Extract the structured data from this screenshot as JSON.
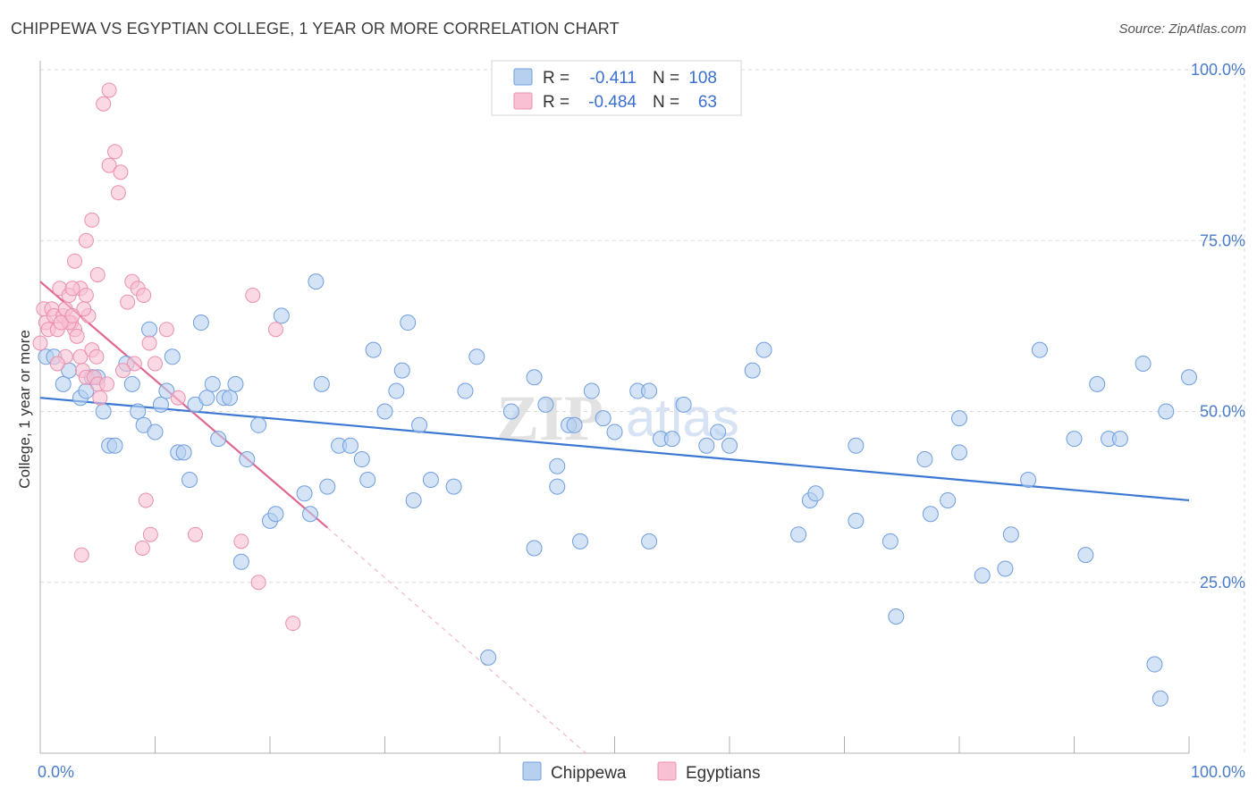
{
  "header": {
    "title": "CHIPPEWA VS EGYPTIAN COLLEGE, 1 YEAR OR MORE CORRELATION CHART",
    "source": "Source: ZipAtlas.com"
  },
  "watermark": "ZIPatlas",
  "chart_data": {
    "type": "scatter",
    "ylabel": "College, 1 year or more",
    "xlim": [
      0,
      100
    ],
    "ylim": [
      0,
      100
    ],
    "x_tick_labels": [
      "0.0%",
      "100.0%"
    ],
    "y_tick_labels": [
      "100.0%",
      "75.0%",
      "50.0%",
      "25.0%"
    ],
    "y_ticks": [
      100,
      75,
      50,
      25
    ],
    "grid": "horizontal dashed",
    "legend_position": "top-center",
    "legend": {
      "rows": [
        {
          "series": "Chippewa",
          "r_label": "R =",
          "r_value": "-0.411",
          "n_label": "N =",
          "n_value": "108"
        },
        {
          "series": "Egyptians",
          "r_label": "R =",
          "r_value": "-0.484",
          "n_label": "N =",
          "n_value": "63"
        }
      ]
    },
    "colors": {
      "Chippewa": {
        "fill": "#b8d0f0",
        "stroke": "#6f9ee0",
        "line": "#3a78d4"
      },
      "Egyptians": {
        "fill": "#f8c0d2",
        "stroke": "#ea8fad",
        "line": "#e0668f"
      }
    },
    "series": [
      {
        "name": "Chippewa",
        "trend": {
          "x0": 0,
          "y0": 52,
          "x1": 100,
          "y1": 37
        },
        "points": [
          [
            0.5,
            58
          ],
          [
            1.2,
            58
          ],
          [
            2,
            54
          ],
          [
            2.5,
            56
          ],
          [
            3.5,
            52
          ],
          [
            4,
            53
          ],
          [
            4.5,
            55
          ],
          [
            5,
            55
          ],
          [
            5.5,
            50
          ],
          [
            6,
            45
          ],
          [
            6.5,
            45
          ],
          [
            7.5,
            57
          ],
          [
            8,
            54
          ],
          [
            8.5,
            50
          ],
          [
            9,
            48
          ],
          [
            9.5,
            62
          ],
          [
            10,
            47
          ],
          [
            10.5,
            51
          ],
          [
            11,
            53
          ],
          [
            11.5,
            58
          ],
          [
            12,
            44
          ],
          [
            12.5,
            44
          ],
          [
            13,
            40
          ],
          [
            13.5,
            51
          ],
          [
            14,
            63
          ],
          [
            14.5,
            52
          ],
          [
            15,
            54
          ],
          [
            15.5,
            46
          ],
          [
            16,
            52
          ],
          [
            16.5,
            52
          ],
          [
            17,
            54
          ],
          [
            17.5,
            28
          ],
          [
            18,
            43
          ],
          [
            19,
            48
          ],
          [
            20,
            34
          ],
          [
            20.5,
            35
          ],
          [
            21,
            64
          ],
          [
            23,
            38
          ],
          [
            23.5,
            35
          ],
          [
            24,
            69
          ],
          [
            24.5,
            54
          ],
          [
            25,
            39
          ],
          [
            26,
            45
          ],
          [
            27,
            45
          ],
          [
            28,
            43
          ],
          [
            28.5,
            40
          ],
          [
            29,
            59
          ],
          [
            30,
            50
          ],
          [
            31,
            53
          ],
          [
            31.5,
            56
          ],
          [
            32,
            63
          ],
          [
            32.5,
            37
          ],
          [
            33,
            48
          ],
          [
            34,
            40
          ],
          [
            36,
            39
          ],
          [
            38,
            58
          ],
          [
            39,
            14
          ],
          [
            41,
            50
          ],
          [
            43,
            55
          ],
          [
            43,
            30
          ],
          [
            45,
            42
          ],
          [
            45,
            39
          ],
          [
            46,
            48
          ],
          [
            46.5,
            48
          ],
          [
            47,
            31
          ],
          [
            48,
            53
          ],
          [
            49,
            49
          ],
          [
            50,
            47
          ],
          [
            52,
            53
          ],
          [
            53,
            31
          ],
          [
            53,
            53
          ],
          [
            54,
            46
          ],
          [
            56,
            51
          ],
          [
            58,
            45
          ],
          [
            59,
            47
          ],
          [
            62,
            56
          ],
          [
            63,
            59
          ],
          [
            66,
            32
          ],
          [
            67,
            37
          ],
          [
            67.5,
            38
          ],
          [
            71,
            45
          ],
          [
            71,
            34
          ],
          [
            74,
            31
          ],
          [
            74.5,
            20
          ],
          [
            77,
            43
          ],
          [
            77.5,
            35
          ],
          [
            79,
            37
          ],
          [
            80,
            44
          ],
          [
            80,
            49
          ],
          [
            82,
            26
          ],
          [
            84,
            27
          ],
          [
            84.5,
            32
          ],
          [
            86,
            40
          ],
          [
            87,
            59
          ],
          [
            90,
            46
          ],
          [
            91,
            29
          ],
          [
            92,
            54
          ],
          [
            93,
            46
          ],
          [
            94,
            46
          ],
          [
            96,
            57
          ],
          [
            97,
            13
          ],
          [
            97.5,
            8
          ],
          [
            98,
            50
          ],
          [
            100,
            55
          ],
          [
            55,
            46
          ],
          [
            60,
            45
          ],
          [
            44,
            51
          ],
          [
            37,
            53
          ]
        ]
      },
      {
        "name": "Egyptians",
        "trend": {
          "x0": 0,
          "y0": 69,
          "x1": 25,
          "y1": 33
        },
        "trend_ext": {
          "x0": 25,
          "y0": 33,
          "x1": 47.5,
          "y1": 0
        },
        "points": [
          [
            0,
            60
          ],
          [
            0.3,
            65
          ],
          [
            0.5,
            63
          ],
          [
            0.7,
            62
          ],
          [
            1,
            65
          ],
          [
            1.2,
            64
          ],
          [
            1.5,
            62
          ],
          [
            1.7,
            68
          ],
          [
            2,
            64
          ],
          [
            2.2,
            65
          ],
          [
            2.5,
            67
          ],
          [
            2.7,
            63
          ],
          [
            3,
            62
          ],
          [
            3.2,
            61
          ],
          [
            3.5,
            58
          ],
          [
            3.7,
            56
          ],
          [
            4,
            55
          ],
          [
            4.2,
            64
          ],
          [
            4.5,
            59
          ],
          [
            4.7,
            55
          ],
          [
            5,
            54
          ],
          [
            5.2,
            52
          ],
          [
            3,
            72
          ],
          [
            4,
            75
          ],
          [
            5,
            70
          ],
          [
            6,
            86
          ],
          [
            6.5,
            88
          ],
          [
            7,
            85
          ],
          [
            4.5,
            78
          ],
          [
            5.5,
            95
          ],
          [
            6,
            97
          ],
          [
            6.8,
            82
          ],
          [
            8,
            69
          ],
          [
            8.5,
            68
          ],
          [
            9,
            67
          ],
          [
            9.5,
            60
          ],
          [
            10,
            57
          ],
          [
            11,
            62
          ],
          [
            12,
            52
          ],
          [
            3.5,
            68
          ],
          [
            4,
            67
          ],
          [
            2.5,
            63
          ],
          [
            3.8,
            65
          ],
          [
            1.8,
            63
          ],
          [
            2.8,
            64
          ],
          [
            8.2,
            57
          ],
          [
            8.9,
            30
          ],
          [
            9.2,
            37
          ],
          [
            9.6,
            32
          ],
          [
            13.5,
            32
          ],
          [
            17.5,
            31
          ],
          [
            18.5,
            67
          ],
          [
            19,
            25
          ],
          [
            20.5,
            62
          ],
          [
            22,
            19
          ],
          [
            7.6,
            66
          ],
          [
            2.2,
            58
          ],
          [
            5.8,
            54
          ],
          [
            1.5,
            57
          ],
          [
            3.6,
            29
          ],
          [
            4.9,
            58
          ],
          [
            7.2,
            56
          ],
          [
            2.8,
            68
          ]
        ]
      }
    ]
  },
  "bottom_legend": [
    {
      "label": "Chippewa"
    },
    {
      "label": "Egyptians"
    }
  ]
}
